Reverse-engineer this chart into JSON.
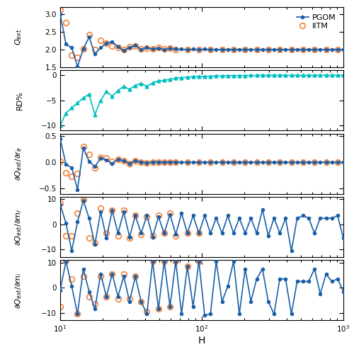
{
  "title": "",
  "xlabel": "H",
  "panels": [
    {
      "ylabel": "$Q_{ext}$",
      "ylim": [
        1.5,
        3.2
      ],
      "yticks": [
        1.5,
        2.0,
        2.5,
        3.0
      ],
      "has_legend": true
    },
    {
      "ylabel": "RD%",
      "ylim": [
        -11,
        1
      ],
      "yticks": [
        -10,
        -5,
        0
      ],
      "has_legend": false
    },
    {
      "ylabel": "$\\partial Q_{ext}/\\partial r_e$",
      "ylim": [
        -0.6,
        0.55
      ],
      "yticks": [
        -0.5,
        0.0,
        0.5
      ],
      "has_legend": false
    },
    {
      "ylabel": "$\\partial Q_{ext}/\\partial m_r$",
      "ylim": [
        -13,
        11
      ],
      "yticks": [
        -10,
        0,
        10
      ],
      "has_legend": false
    },
    {
      "ylabel": "$\\partial Q_{ext}/\\partial m_i$",
      "ylim": [
        -13,
        11
      ],
      "yticks": [
        -10,
        0,
        10
      ],
      "has_legend": false
    }
  ],
  "pgom_color": "#1a5fa8",
  "iitm_color": "#f5813a",
  "rd_color": "#00bfbf",
  "line_width": 1.2,
  "pgom_marker_size": 3.0,
  "iitm_marker_size": 5.5,
  "figsize": [
    5.0,
    4.97
  ],
  "dpi": 100
}
